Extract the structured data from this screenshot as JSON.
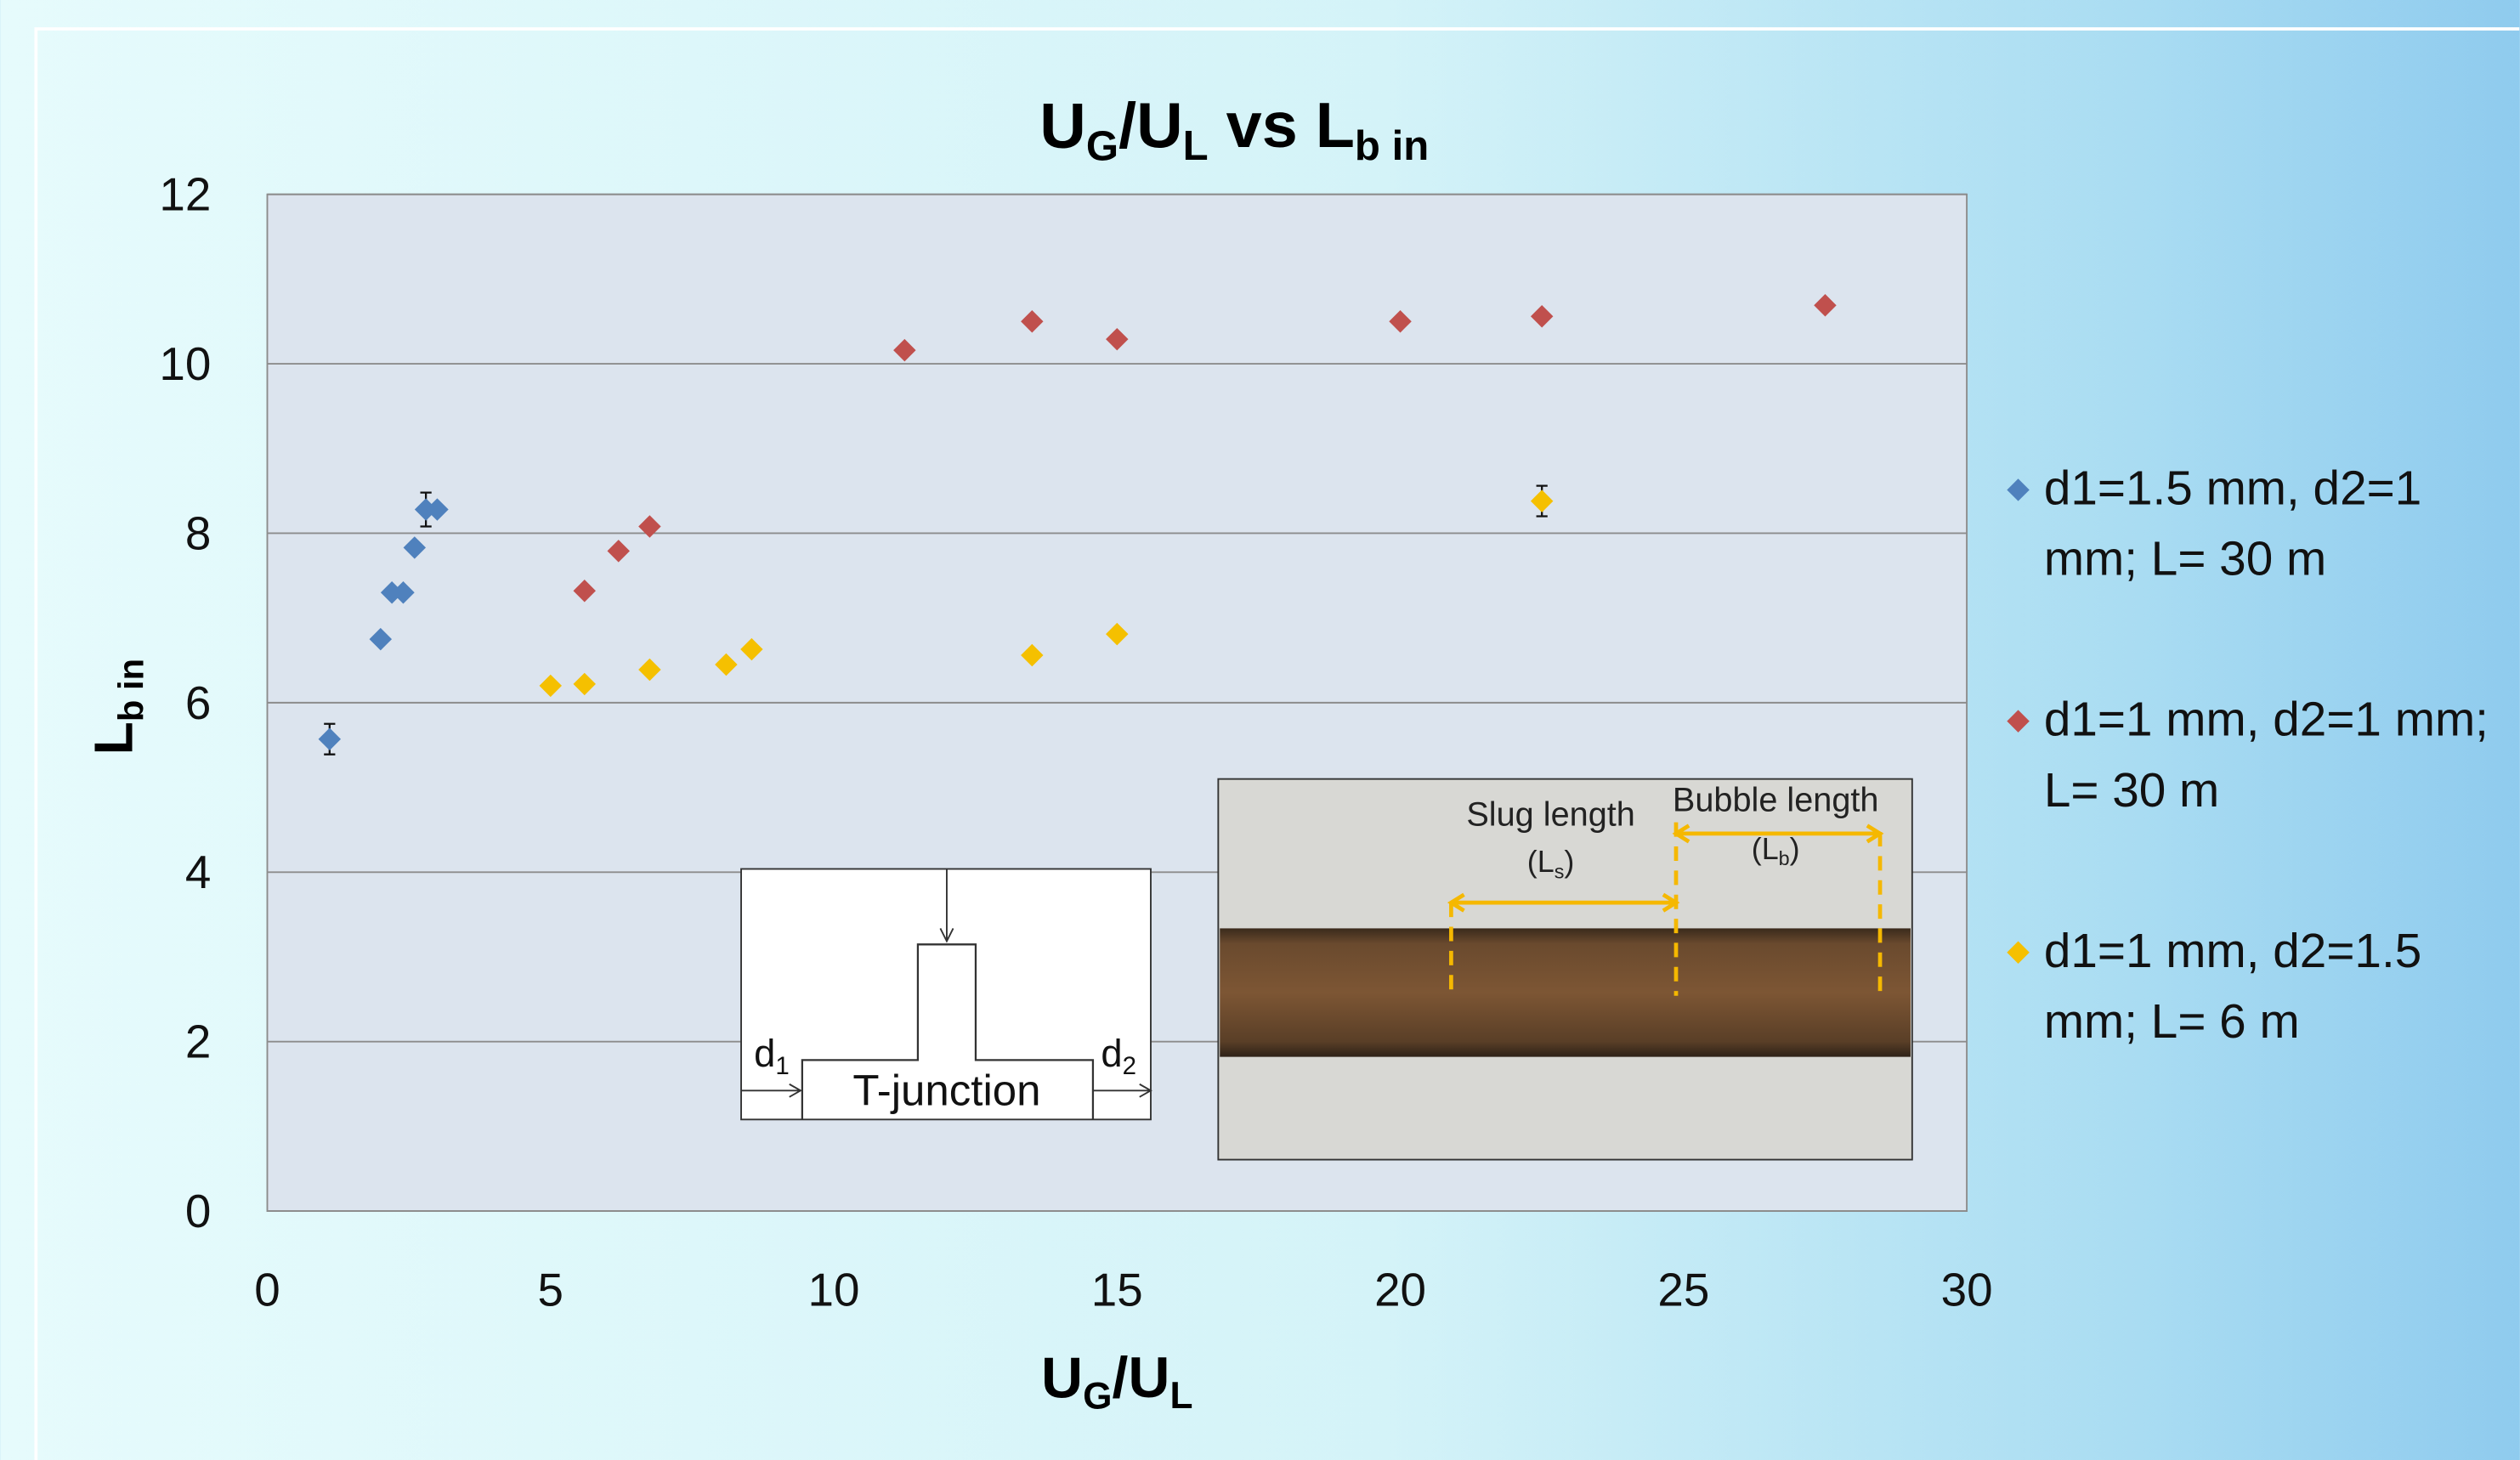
{
  "chart_data": {
    "type": "scatter",
    "title": [
      {
        "text": "U"
      },
      {
        "text": "G",
        "sub": true
      },
      {
        "text": "/U"
      },
      {
        "text": "L",
        "sub": true
      },
      {
        "text": " vs L"
      },
      {
        "text": "b in",
        "sub": true
      }
    ],
    "x_label": [
      {
        "text": "U"
      },
      {
        "text": "G",
        "sub": true
      },
      {
        "text": "/U"
      },
      {
        "text": "L",
        "sub": true
      }
    ],
    "y_label": [
      {
        "text": "L"
      },
      {
        "text": "b in",
        "sub": true
      }
    ],
    "xlim": [
      0,
      30
    ],
    "xticks": [
      0,
      5,
      10,
      15,
      20,
      25,
      30
    ],
    "ylim": [
      0,
      12
    ],
    "yticks": [
      0,
      2,
      4,
      6,
      8,
      10,
      12
    ],
    "grid": true,
    "legend": "right",
    "series": [
      {
        "name": "d1=1.5 mm, d2=1 mm; L= 30 m",
        "color": "#4f81bd",
        "x": [
          1.1,
          2.0,
          2.2,
          2.4,
          2.6,
          2.8,
          3.0
        ],
        "values": [
          5.57,
          6.75,
          7.3,
          7.3,
          7.83,
          8.28,
          8.28
        ],
        "errors": [
          0.18,
          null,
          null,
          null,
          null,
          0.2,
          null
        ]
      },
      {
        "name": "d1=1 mm, d2=1 mm; L= 30 m",
        "color": "#c0504d",
        "x": [
          5.6,
          6.2,
          6.75,
          11.25,
          13.5,
          15.0,
          20.0,
          22.5,
          27.5
        ],
        "values": [
          7.32,
          7.79,
          8.08,
          10.16,
          10.5,
          10.29,
          10.5,
          10.56,
          10.69
        ],
        "errors": [
          null,
          null,
          null,
          null,
          null,
          null,
          null,
          null,
          null
        ]
      },
      {
        "name": "d1=1 mm, d2=1.5 mm; L= 6 m",
        "color": "#f5c000",
        "x": [
          5.0,
          5.6,
          6.75,
          8.1,
          8.55,
          13.5,
          15.0,
          22.5
        ],
        "values": [
          6.2,
          6.22,
          6.39,
          6.45,
          6.63,
          6.56,
          6.81,
          8.38
        ],
        "errors": [
          null,
          null,
          null,
          null,
          null,
          null,
          null,
          0.18
        ]
      }
    ],
    "annotations": {
      "t_junction": "T-junction",
      "d1": [
        {
          "text": "d"
        },
        {
          "text": "1",
          "sub": true
        }
      ],
      "d2": [
        {
          "text": "d"
        },
        {
          "text": "2",
          "sub": true
        }
      ],
      "slug_length": "Slug length",
      "slug_symbol": [
        {
          "text": "(L"
        },
        {
          "text": "s",
          "sub": true
        },
        {
          "text": ")"
        }
      ],
      "bubble_length": "Bubble length",
      "bubble_symbol": [
        {
          "text": "(L"
        },
        {
          "text": "b",
          "sub": true
        },
        {
          "text": ")"
        }
      ]
    }
  }
}
